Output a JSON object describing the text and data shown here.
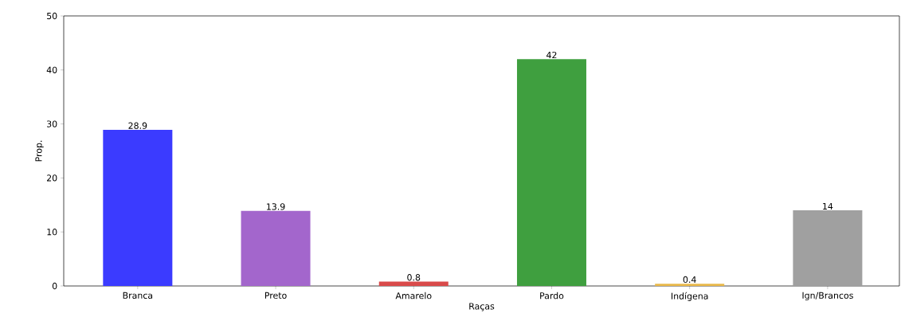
{
  "chart_data": {
    "type": "bar",
    "xlabel": "Raças",
    "ylabel": "Prop.",
    "categories": [
      "Branca",
      "Preto",
      "Amarelo",
      "Pardo",
      "Indígena",
      "Ign/Brancos"
    ],
    "values": [
      28.9,
      13.9,
      0.8,
      42,
      0.4,
      14
    ],
    "colors": [
      "#3b3bff",
      "#a366cc",
      "#d94a4a",
      "#3f9f3f",
      "#e8b84a",
      "#a0a0a0"
    ],
    "ylim": [
      0,
      50
    ],
    "yticks": [
      0,
      10,
      20,
      30,
      40,
      50
    ],
    "data_labels": true
  }
}
